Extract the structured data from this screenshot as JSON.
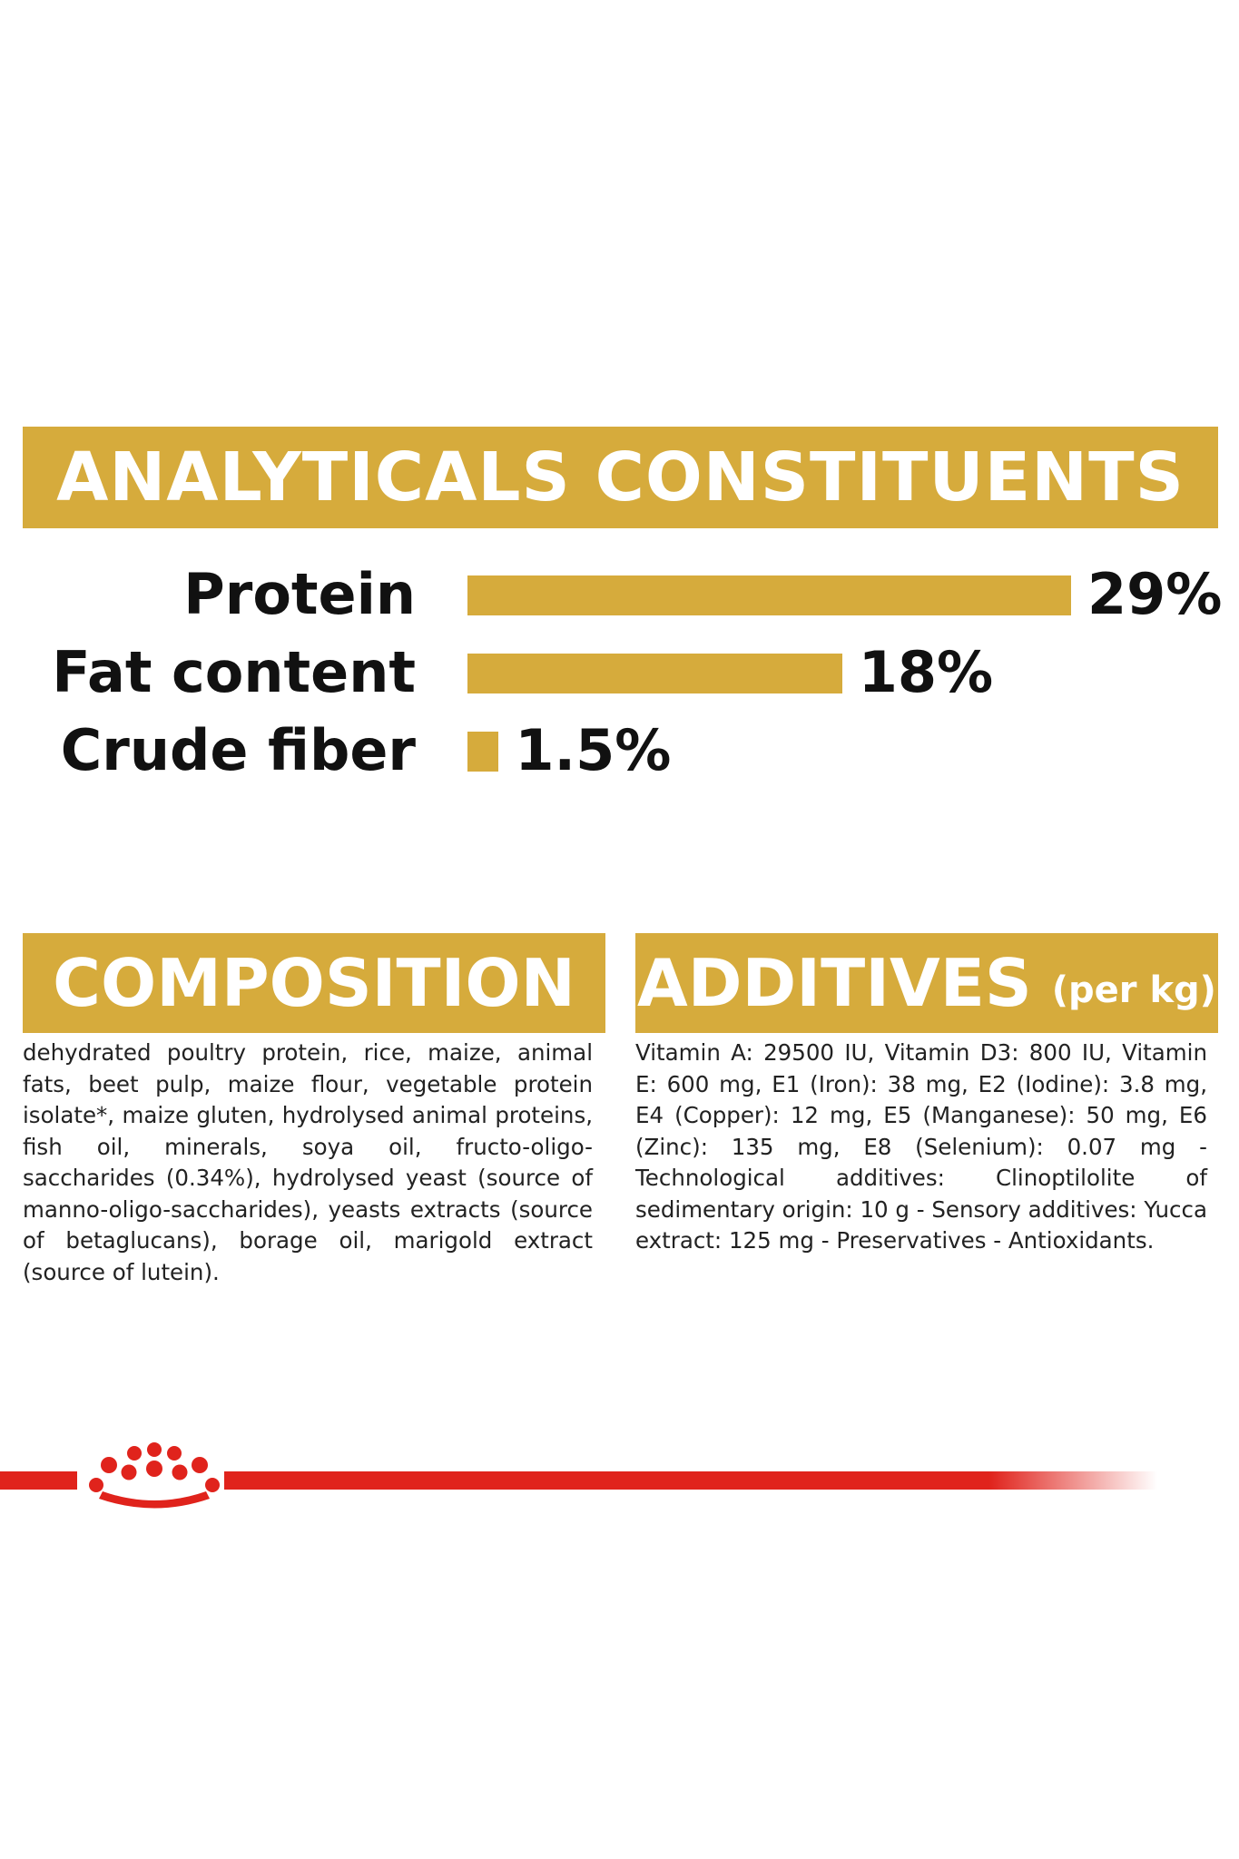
{
  "analyticals": {
    "title": "ANALYTICALS CONSTITUENTS",
    "rows": [
      {
        "label": "Protein",
        "value": "29%",
        "percent": 29
      },
      {
        "label": "Fat content",
        "value": "18%",
        "percent": 18
      },
      {
        "label": "Crude fiber",
        "value": "1.5%",
        "percent": 1.5
      }
    ]
  },
  "composition": {
    "title": "COMPOSITION",
    "text": "dehydrated poultry protein, rice, maize, animal fats, beet pulp, maize flour, vegetable protein isolate*, maize gluten, hydrolysed animal proteins, fish oil, minerals, soya oil, fructo-oligo- saccharides (0.34%), hydrolysed yeast (source of manno-oligo-saccharides), yeasts extracts (source of betaglucans), borage oil, marigold extract (source of lutein)."
  },
  "additives": {
    "title": "ADDITIVES",
    "unit": "(per kg)",
    "text": "Vitamin A: 29500 IU, Vitamin D3: 800 IU, Vitamin E: 600 mg, E1 (Iron): 38 mg, E2 (Iodine): 3.8 mg, E4 (Copper): 12 mg, E5 (Manganese): 50 mg, E6 (Zinc): 135 mg, E8 (Selenium): 0.07 mg - Technological additives: Clinoptilolite of sedimentary origin: 10 g - Sensory additives: Yucca extract: 125 mg - Preservatives - Antioxidants."
  },
  "footer": {
    "logo": "crown-icon"
  },
  "colors": {
    "accent": "#d6ab3c",
    "brand_red": "#e0231c"
  }
}
